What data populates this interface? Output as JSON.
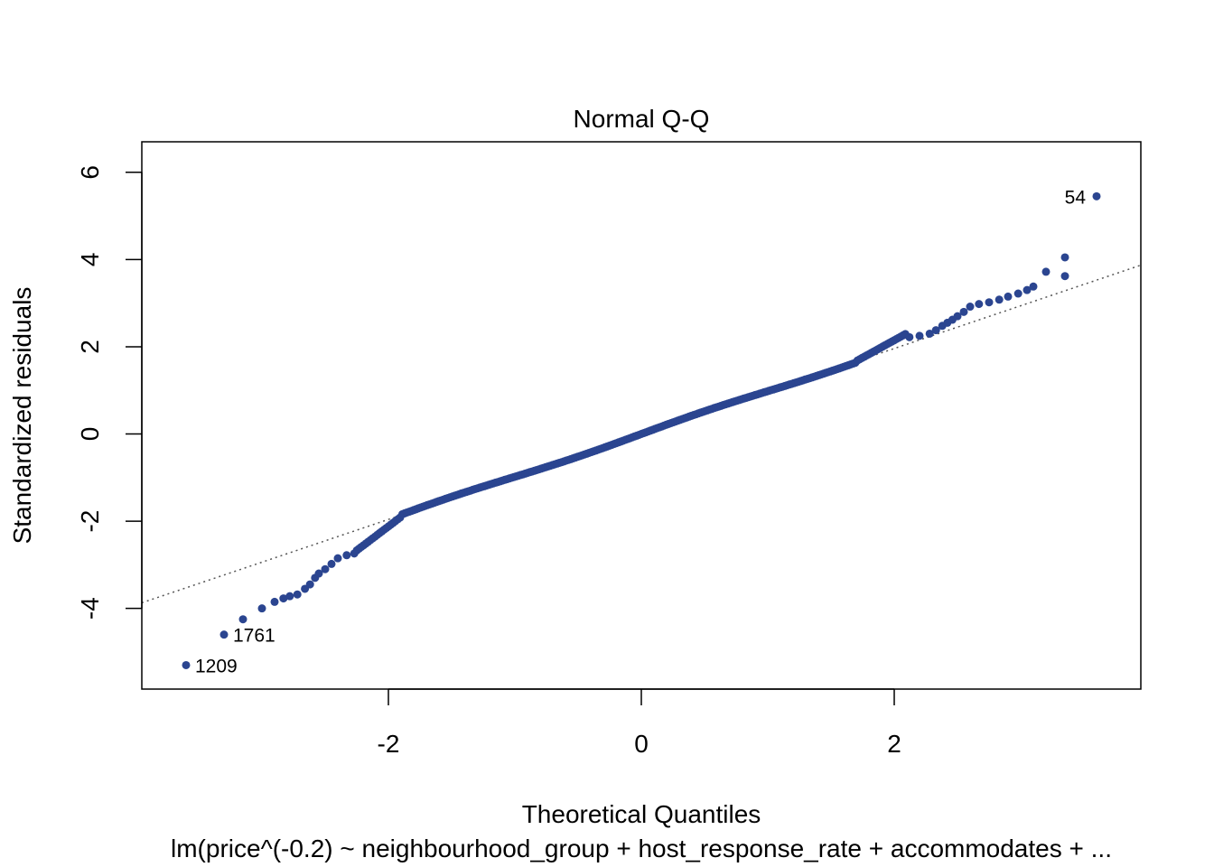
{
  "chart_data": {
    "type": "scatter",
    "title": "Normal Q-Q",
    "xlabel": "Theoretical Quantiles",
    "ylabel": "Standardized residuals",
    "subtitle": "lm(price^(-0.2) ~ neighbourhood_group + host_response_rate + accommodates + ...",
    "xlim": [
      -3.95,
      3.95
    ],
    "ylim": [
      -5.85,
      6.7
    ],
    "x_ticks": [
      -2,
      0,
      2
    ],
    "y_ticks": [
      -4,
      -2,
      0,
      2,
      4,
      6
    ],
    "x_tick_labels": [
      "-2",
      "0",
      "2"
    ],
    "y_tick_labels": [
      "-4",
      "-2",
      "0",
      "2",
      "4",
      "6"
    ],
    "grid": false,
    "colors": {
      "points": "#2b4590",
      "reference_line": "#555555"
    },
    "reference_line": {
      "intercept": 0.0,
      "slope": 0.98,
      "style": "dotted"
    },
    "series": [
      {
        "points": [
          [
            -3.6,
            -5.3
          ],
          [
            -3.3,
            -4.6
          ],
          [
            -3.15,
            -4.25
          ],
          [
            -3.0,
            -4.0
          ],
          [
            -2.9,
            -3.85
          ],
          [
            -2.83,
            -3.77
          ],
          [
            -2.78,
            -3.72
          ],
          [
            -2.72,
            -3.68
          ],
          [
            -2.66,
            -3.55
          ],
          [
            -2.62,
            -3.45
          ],
          [
            -2.58,
            -3.3
          ],
          [
            -2.55,
            -3.2
          ],
          [
            -2.5,
            -3.1
          ],
          [
            -2.45,
            -2.98
          ],
          [
            -2.4,
            -2.85
          ],
          [
            -2.33,
            -2.78
          ],
          [
            -2.27,
            -2.74
          ]
        ]
      }
    ],
    "labeled_points": [
      {
        "label": "54",
        "x": 3.6,
        "y": 5.45,
        "side": "left"
      },
      {
        "label": "1761",
        "x": -3.3,
        "y": -4.6,
        "side": "right"
      },
      {
        "label": "1209",
        "x": -3.6,
        "y": -5.3,
        "side": "right"
      }
    ]
  }
}
